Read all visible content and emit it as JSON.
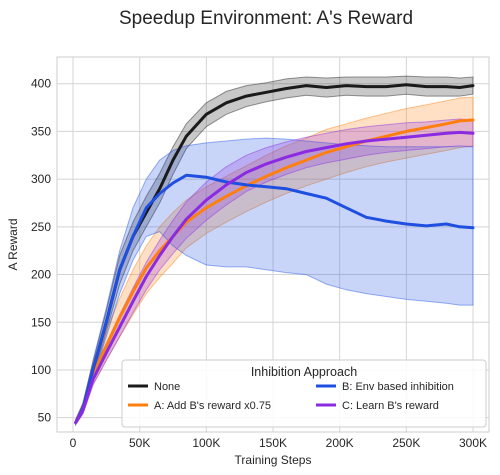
{
  "chart_data": {
    "type": "line",
    "title": "Speedup Environment: A's Reward",
    "xlabel": "Training Steps",
    "ylabel": "A Reward",
    "xlim": [
      -12000,
      312000
    ],
    "ylim": [
      35,
      428
    ],
    "xticks": [
      0,
      50000,
      100000,
      150000,
      200000,
      250000,
      300000
    ],
    "xtick_labels": [
      "0",
      "50K",
      "100K",
      "150K",
      "200K",
      "250K",
      "300K"
    ],
    "yticks": [
      50,
      100,
      150,
      200,
      250,
      300,
      350,
      400
    ],
    "ytick_labels": [
      "50",
      "100",
      "150",
      "200",
      "250",
      "300",
      "350",
      "400"
    ],
    "grid": true,
    "legend": {
      "title": "Inhibition Approach",
      "placement": "bottom-right",
      "columns": 2
    },
    "series": [
      {
        "name": "None",
        "color": "#1a1a1a",
        "x": [
          2000,
          7500,
          15000,
          25000,
          35000,
          45000,
          55000,
          65000,
          75000,
          85000,
          100000,
          115000,
          130000,
          145000,
          160000,
          175000,
          190000,
          205000,
          220000,
          235000,
          250000,
          265000,
          280000,
          290000,
          300000
        ],
        "y": [
          45,
          60,
          100,
          150,
          205,
          240,
          265,
          290,
          320,
          345,
          368,
          380,
          387,
          391,
          395,
          398,
          396,
          398,
          397,
          397,
          399,
          397,
          397,
          396,
          398
        ],
        "lower": [
          43,
          55,
          92,
          140,
          190,
          225,
          250,
          275,
          305,
          332,
          355,
          368,
          376,
          381,
          385,
          388,
          386,
          388,
          387,
          387,
          389,
          387,
          387,
          387,
          389
        ],
        "upper": [
          48,
          65,
          108,
          162,
          220,
          255,
          282,
          306,
          334,
          358,
          380,
          392,
          398,
          401,
          405,
          407,
          406,
          407,
          407,
          407,
          408,
          407,
          407,
          406,
          407
        ]
      },
      {
        "name": "A: Add B's reward x0.75",
        "color": "#ff7f0e",
        "x": [
          2000,
          7500,
          15000,
          25000,
          35000,
          45000,
          55000,
          65000,
          75000,
          85000,
          100000,
          115000,
          130000,
          145000,
          160000,
          175000,
          190000,
          205000,
          220000,
          235000,
          250000,
          265000,
          280000,
          290000,
          300000
        ],
        "y": [
          45,
          60,
          95,
          125,
          155,
          182,
          207,
          225,
          240,
          255,
          270,
          282,
          293,
          303,
          312,
          320,
          328,
          334,
          340,
          345,
          350,
          354,
          358,
          361,
          362
        ],
        "lower": [
          43,
          55,
          85,
          110,
          135,
          158,
          180,
          197,
          212,
          228,
          243,
          255,
          266,
          276,
          285,
          293,
          300,
          307,
          313,
          318,
          322,
          326,
          330,
          333,
          335
        ],
        "upper": [
          48,
          66,
          108,
          142,
          175,
          205,
          230,
          250,
          265,
          278,
          292,
          303,
          314,
          325,
          335,
          343,
          352,
          358,
          364,
          369,
          374,
          378,
          382,
          385,
          386
        ]
      },
      {
        "name": "B: Env based inhibition",
        "color": "#1f4fe0",
        "x": [
          2000,
          7500,
          15000,
          25000,
          35000,
          45000,
          55000,
          65000,
          75000,
          85000,
          100000,
          115000,
          130000,
          145000,
          160000,
          175000,
          190000,
          205000,
          220000,
          235000,
          250000,
          265000,
          280000,
          290000,
          300000
        ],
        "y": [
          45,
          60,
          100,
          150,
          205,
          240,
          270,
          285,
          296,
          304,
          302,
          297,
          294,
          292,
          290,
          285,
          280,
          270,
          260,
          256,
          253,
          251,
          253,
          250,
          249
        ],
        "lower": [
          43,
          55,
          90,
          135,
          180,
          215,
          240,
          245,
          230,
          220,
          210,
          208,
          208,
          205,
          202,
          200,
          190,
          184,
          180,
          177,
          174,
          172,
          170,
          168,
          168
        ],
        "upper": [
          48,
          65,
          110,
          165,
          225,
          270,
          300,
          320,
          330,
          335,
          338,
          340,
          342,
          343,
          342,
          340,
          338,
          336,
          335,
          334,
          334,
          334,
          334,
          334,
          334
        ]
      },
      {
        "name": "C: Learn B's reward",
        "color": "#8a2be2",
        "x": [
          2000,
          7500,
          15000,
          25000,
          35000,
          45000,
          55000,
          65000,
          75000,
          85000,
          100000,
          115000,
          130000,
          145000,
          160000,
          175000,
          190000,
          205000,
          220000,
          235000,
          250000,
          265000,
          280000,
          290000,
          300000
        ],
        "y": [
          45,
          58,
          90,
          118,
          145,
          172,
          198,
          220,
          240,
          258,
          278,
          294,
          307,
          316,
          323,
          329,
          333,
          337,
          340,
          342,
          344,
          346,
          348,
          349,
          348
        ],
        "lower": [
          43,
          54,
          84,
          110,
          135,
          160,
          184,
          205,
          222,
          238,
          257,
          273,
          287,
          297,
          305,
          312,
          317,
          321,
          325,
          328,
          330,
          332,
          334,
          335,
          334
        ],
        "upper": [
          47,
          63,
          97,
          128,
          158,
          186,
          213,
          236,
          257,
          276,
          297,
          313,
          325,
          333,
          339,
          344,
          348,
          352,
          355,
          357,
          359,
          360,
          362,
          363,
          362
        ]
      }
    ]
  }
}
